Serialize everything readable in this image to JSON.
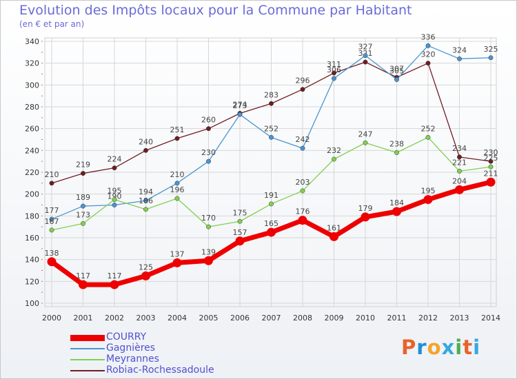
{
  "header": {
    "title": "Evolution des Impôts locaux pour la Commune par Habitant",
    "subtitle": "(en € et par an)"
  },
  "logo": {
    "text": "Proxiti"
  },
  "colors": {
    "title": "#6a6ad8",
    "grid": "#d6d6d6",
    "axis_text": "#333333",
    "label_text": "#444444"
  },
  "chart_data": {
    "type": "line",
    "title": "Evolution des Impôts locaux pour la Commune par Habitant",
    "subtitle": "(en € et par an)",
    "x": [
      2000,
      2001,
      2002,
      2003,
      2004,
      2005,
      2006,
      2007,
      2008,
      2009,
      2010,
      2011,
      2012,
      2013,
      2014
    ],
    "ylim": [
      100,
      340
    ],
    "yticks": [
      100,
      120,
      140,
      160,
      180,
      200,
      220,
      240,
      260,
      280,
      300,
      320,
      340
    ],
    "grid": true,
    "legend": "bottom-left",
    "series": [
      {
        "name": "Robiac-Rochessadoule",
        "color": "#701c22",
        "values": [
          210,
          219,
          224,
          240,
          251,
          260,
          274,
          283,
          296,
          311,
          321,
          307,
          320,
          234,
          230
        ]
      },
      {
        "name": "Gagnières",
        "color": "#4a94d0",
        "values": [
          177,
          189,
          190,
          194,
          210,
          230,
          273,
          252,
          242,
          306,
          327,
          305,
          336,
          324,
          325
        ]
      },
      {
        "name": "Meyrannes",
        "color": "#80d050",
        "values": [
          167,
          173,
          195,
          186,
          196,
          170,
          175,
          191,
          203,
          232,
          247,
          238,
          252,
          221,
          225
        ]
      },
      {
        "name": "COURRY",
        "color": "#ee0000",
        "values": [
          138,
          117,
          117,
          125,
          137,
          139,
          157,
          165,
          176,
          161,
          179,
          184,
          195,
          204,
          211
        ]
      }
    ]
  }
}
